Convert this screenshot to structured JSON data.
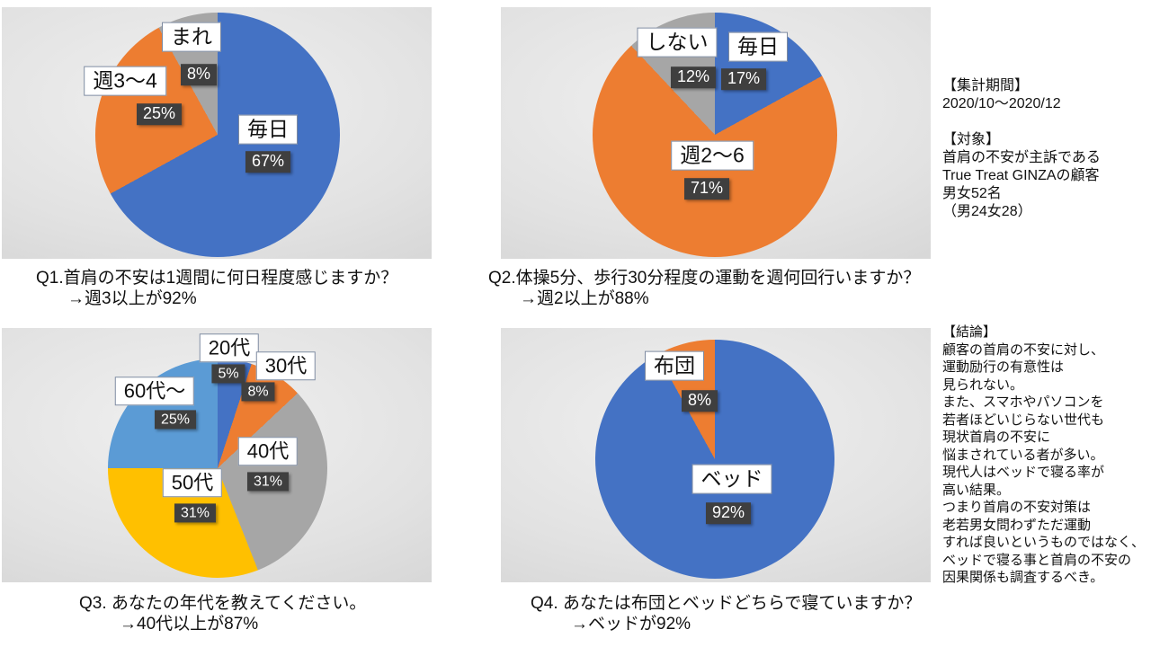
{
  "palette": {
    "blue": "#4472C4",
    "orange": "#ED7D31",
    "gray": "#A6A6A6",
    "yellow": "#FFC000",
    "light_blue": "#5B9BD5",
    "percent_box": "#3f3f3f",
    "panel_gray": "#d9d9d9"
  },
  "chart_data": [
    {
      "type": "pie",
      "id": "q1",
      "title": "Q1.首肩の不安は1週間に何日程度感じますか？",
      "subtitle": "→週3以上が92%",
      "unit": "%",
      "start_angle_deg": 0,
      "direction": "clockwise",
      "legend_position": "none",
      "slices": [
        {
          "label": "毎日",
          "value": 67,
          "color": "#4472C4",
          "label_pos": [
            296,
            136
          ],
          "pct_pos": [
            296,
            172
          ]
        },
        {
          "label": "週3〜4",
          "value": 25,
          "color": "#ED7D31",
          "label_pos": [
            137,
            82
          ],
          "pct_pos": [
            175,
            119
          ]
        },
        {
          "label": "まれ",
          "value": 8,
          "color": "#A6A6A6",
          "label_pos": [
            211,
            33
          ],
          "pct_pos": [
            219,
            75
          ]
        }
      ]
    },
    {
      "type": "pie",
      "id": "q2",
      "title": "Q2.体操5分、歩行30分程度の運動を週何回行いますか？",
      "subtitle": "→週2以上が88%",
      "unit": "%",
      "start_angle_deg": 0,
      "direction": "clockwise",
      "legend_position": "none",
      "slices": [
        {
          "label": "毎日",
          "value": 17,
          "color": "#4472C4",
          "label_pos": [
            286,
            44
          ],
          "pct_pos": [
            270,
            80
          ]
        },
        {
          "label": "週2〜6",
          "value": 71,
          "color": "#ED7D31",
          "label_pos": [
            235,
            165
          ],
          "pct_pos": [
            229,
            202
          ]
        },
        {
          "label": "しない",
          "value": 12,
          "color": "#A6A6A6",
          "label_pos": [
            196,
            39
          ],
          "pct_pos": [
            214,
            78
          ]
        }
      ]
    },
    {
      "type": "pie",
      "id": "q3",
      "title": "Q3. あなたの年代を教えてください。",
      "subtitle": "→40代以上が87%",
      "unit": "%",
      "start_angle_deg": 0,
      "direction": "clockwise",
      "legend_position": "none",
      "slices": [
        {
          "label": "20代",
          "value": 5,
          "color": "#4472C4",
          "label_pos": [
            253,
            22
          ],
          "pct_pos": [
            252,
            51
          ]
        },
        {
          "label": "30代",
          "value": 8,
          "color": "#ED7D31",
          "label_pos": [
            316,
            42
          ],
          "pct_pos": [
            285,
            71
          ]
        },
        {
          "label": "40代",
          "value": 31,
          "color": "#A6A6A6",
          "label_pos": [
            296,
            137
          ],
          "pct_pos": [
            296,
            171
          ]
        },
        {
          "label": "50代",
          "value": 31,
          "color": "#FFC000",
          "label_pos": [
            212,
            172
          ],
          "pct_pos": [
            215,
            206
          ]
        },
        {
          "label": "60代〜",
          "value": 25,
          "color": "#5B9BD5",
          "label_pos": [
            170,
            70
          ],
          "pct_pos": [
            193,
            102
          ]
        }
      ]
    },
    {
      "type": "pie",
      "id": "q4",
      "title": "Q4. あなたは布団とベッドどちらで寝ていますか？",
      "subtitle": "→ベッドが92%",
      "unit": "%",
      "start_angle_deg": 0,
      "direction": "clockwise",
      "legend_position": "none",
      "slices": [
        {
          "label": "ベッド",
          "value": 92,
          "color": "#4472C4",
          "label_pos": [
            257,
            168
          ],
          "pct_pos": [
            253,
            206
          ]
        },
        {
          "label": "布団",
          "value": 8,
          "color": "#ED7D31",
          "label_pos": [
            193,
            42
          ],
          "pct_pos": [
            221,
            81
          ]
        }
      ]
    }
  ],
  "notes": {
    "blocks": [
      {
        "id": "summary-period-and-target",
        "lines": [
          "【集計期間】",
          "2020/10～2020/12",
          "",
          "【対象】",
          "首肩の不安が主訴である",
          "True Treat GINZAの顧客",
          "男女52名",
          "（男24女28）"
        ]
      },
      {
        "id": "conclusion",
        "lines": [
          "【結論】",
          "顧客の首肩の不安に対し、",
          "運動励行の有意性は",
          "見られない。",
          "また、スマホやパソコンを",
          "若者ほどいじらない世代も",
          "現状首肩の不安に",
          "悩まされている者が多い。",
          "現代人はベッドで寝る率が",
          "高い結果。",
          "つまり首肩の不安対策は",
          "老若男女問わずただ運動",
          "すれば良いというものではなく、",
          "ベッドで寝る事と首肩の不安の",
          "因果関係も調査するべき。"
        ]
      }
    ]
  }
}
